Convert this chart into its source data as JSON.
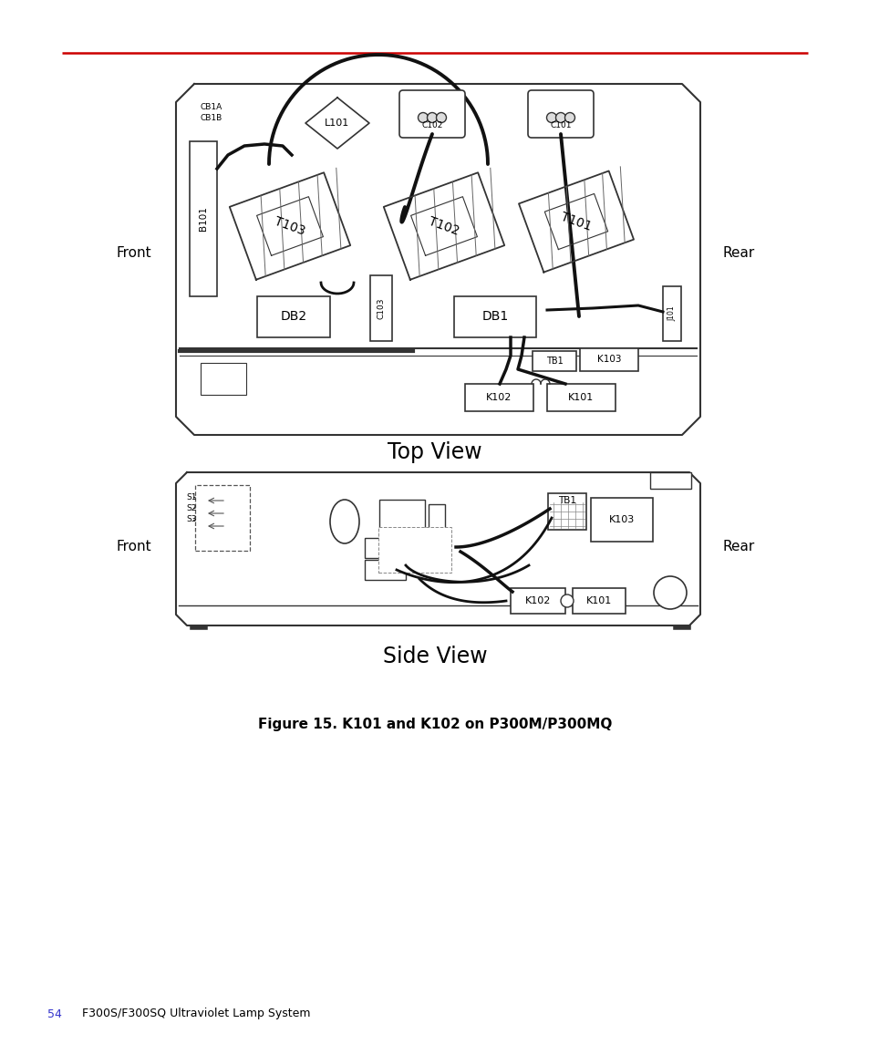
{
  "background_color": "#ffffff",
  "page_width": 9.54,
  "page_height": 11.45,
  "red_line_color": "#cc0000",
  "top_view_title": "Top View",
  "side_view_title": "Side View",
  "figure_caption": "Figure 15. K101 and K102 on P300M/P300MQ",
  "footer_page": "54",
  "footer_text": "F300S/F300SQ Ultraviolet Lamp System",
  "line_color": "#333333",
  "wire_color": "#111111"
}
